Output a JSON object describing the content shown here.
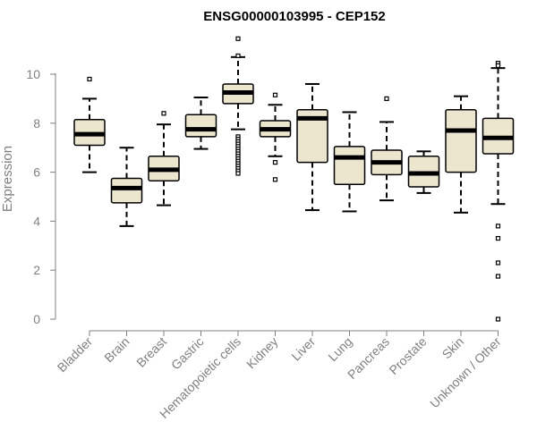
{
  "chart_data": {
    "type": "boxplot",
    "title": "ENSG00000103995 - CEP152",
    "xlabel": "",
    "ylabel": "Expression",
    "ylim": [
      0,
      11.6
    ],
    "yticks": [
      0,
      2,
      4,
      6,
      8,
      10
    ],
    "grid": false,
    "colors": {
      "box_fill": "#ede6cf",
      "box_stroke": "#000000",
      "axis": "#808080"
    },
    "categories": [
      "Bladder",
      "Brain",
      "Breast",
      "Gastric",
      "Hematopoietic cells",
      "Kidney",
      "Liver",
      "Lung",
      "Pancreas",
      "Prostate",
      "Skin",
      "Unknown / Other"
    ],
    "boxes": [
      {
        "category": "Bladder",
        "whisker_low": 6.0,
        "q1": 7.1,
        "median": 7.55,
        "q3": 8.15,
        "whisker_high": 9.0,
        "outliers": [
          9.8
        ]
      },
      {
        "category": "Brain",
        "whisker_low": 3.8,
        "q1": 4.75,
        "median": 5.35,
        "q3": 5.75,
        "whisker_high": 7.0,
        "outliers": []
      },
      {
        "category": "Breast",
        "whisker_low": 4.65,
        "q1": 5.65,
        "median": 6.1,
        "q3": 6.65,
        "whisker_high": 7.95,
        "outliers": [
          8.4
        ]
      },
      {
        "category": "Gastric",
        "whisker_low": 6.95,
        "q1": 7.45,
        "median": 7.75,
        "q3": 8.35,
        "whisker_high": 9.05,
        "outliers": []
      },
      {
        "category": "Hematopoietic cells",
        "whisker_low": 7.75,
        "q1": 8.8,
        "median": 9.25,
        "q3": 9.6,
        "whisker_high": 10.7,
        "outliers": [
          11.45,
          10.75,
          7.45,
          7.35,
          7.25,
          7.15,
          7.05,
          6.95,
          6.85,
          6.75,
          6.65,
          6.55,
          6.45,
          6.35,
          6.25,
          6.15,
          6.05,
          5.95
        ]
      },
      {
        "category": "Kidney",
        "whisker_low": 6.65,
        "q1": 7.45,
        "median": 7.75,
        "q3": 8.1,
        "whisker_high": 8.75,
        "outliers": [
          9.15,
          6.4,
          5.7
        ]
      },
      {
        "category": "Liver",
        "whisker_low": 4.45,
        "q1": 6.4,
        "median": 8.2,
        "q3": 8.55,
        "whisker_high": 9.6,
        "outliers": []
      },
      {
        "category": "Lung",
        "whisker_low": 4.4,
        "q1": 5.5,
        "median": 6.6,
        "q3": 7.05,
        "whisker_high": 8.45,
        "outliers": []
      },
      {
        "category": "Pancreas",
        "whisker_low": 4.85,
        "q1": 5.9,
        "median": 6.4,
        "q3": 6.9,
        "whisker_high": 8.05,
        "outliers": [
          9.0
        ]
      },
      {
        "category": "Prostate",
        "whisker_low": 5.15,
        "q1": 5.4,
        "median": 5.95,
        "q3": 6.65,
        "whisker_high": 6.85,
        "outliers": []
      },
      {
        "category": "Skin",
        "whisker_low": 4.35,
        "q1": 6.0,
        "median": 7.7,
        "q3": 8.55,
        "whisker_high": 9.1,
        "outliers": []
      },
      {
        "category": "Unknown / Other",
        "whisker_low": 4.7,
        "q1": 6.75,
        "median": 7.4,
        "q3": 8.2,
        "whisker_high": 10.25,
        "outliers": [
          10.45,
          10.35,
          3.8,
          3.3,
          2.3,
          1.75,
          0.0
        ]
      }
    ]
  }
}
